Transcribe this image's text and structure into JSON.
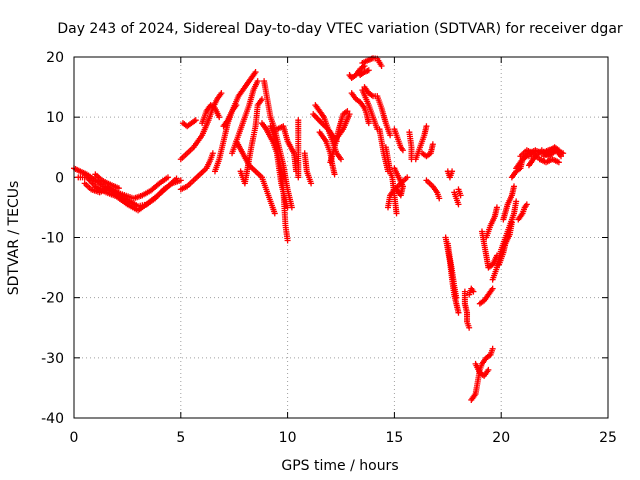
{
  "chart_data": {
    "type": "scatter",
    "title": "Day 243 of 2024, Sidereal Day-to-day VTEC variation (SDTVAR) for receiver dgar",
    "xlabel": "GPS time / hours",
    "ylabel": "SDTVAR / TECUs",
    "xlim": [
      0,
      25
    ],
    "ylim": [
      -40,
      20
    ],
    "xticks": [
      "0",
      "5",
      "10",
      "15",
      "20",
      "25"
    ],
    "yticks": [
      "20",
      "10",
      "0",
      "-10",
      "-20",
      "-30",
      "-40"
    ],
    "grid": true,
    "marker": "plus",
    "color": "#ff0000",
    "segments": [
      [
        [
          0.0,
          1.5
        ],
        [
          0.3,
          1.0
        ],
        [
          0.6,
          0.5
        ],
        [
          1.0,
          -0.5
        ],
        [
          1.4,
          -1.5
        ],
        [
          1.8,
          -2.2
        ],
        [
          2.2,
          -3.0
        ],
        [
          2.6,
          -4.0
        ],
        [
          3.0,
          -4.8
        ],
        [
          3.4,
          -4.5
        ],
        [
          3.8,
          -3.5
        ],
        [
          4.2,
          -2.0
        ],
        [
          4.6,
          -1.0
        ],
        [
          5.0,
          -0.5
        ]
      ],
      [
        [
          0.2,
          0.0
        ],
        [
          0.6,
          0.0
        ],
        [
          1.0,
          -1.5
        ],
        [
          1.5,
          -2.5
        ],
        [
          2.0,
          -3.2
        ],
        [
          2.5,
          -4.5
        ],
        [
          3.0,
          -5.5
        ],
        [
          3.5,
          -4.2
        ],
        [
          4.0,
          -2.8
        ],
        [
          4.5,
          -1.2
        ],
        [
          4.8,
          -0.2
        ]
      ],
      [
        [
          0.5,
          -1.0
        ],
        [
          0.8,
          -2.0
        ],
        [
          1.2,
          -2.5
        ],
        [
          1.6,
          -1.8
        ],
        [
          2.0,
          -2.5
        ],
        [
          2.8,
          -3.5
        ],
        [
          3.2,
          -3.0
        ],
        [
          3.6,
          -2.2
        ],
        [
          4.0,
          -1.0
        ],
        [
          4.4,
          0.0
        ]
      ],
      [
        [
          1.0,
          0.5
        ],
        [
          1.3,
          -0.5
        ],
        [
          1.7,
          -1.2
        ],
        [
          2.1,
          -1.8
        ]
      ],
      [
        [
          5.1,
          9.0
        ],
        [
          5.3,
          8.5
        ],
        [
          5.5,
          9.0
        ],
        [
          5.7,
          9.5
        ]
      ],
      [
        [
          5.0,
          3.0
        ],
        [
          5.3,
          4.0
        ],
        [
          5.6,
          5.0
        ],
        [
          6.0,
          7.0
        ],
        [
          6.3,
          9.5
        ],
        [
          6.5,
          11.5
        ],
        [
          6.7,
          13.0
        ],
        [
          6.9,
          14.0
        ]
      ],
      [
        [
          5.0,
          -2.0
        ],
        [
          5.3,
          -1.5
        ],
        [
          5.6,
          -0.5
        ],
        [
          5.9,
          0.5
        ],
        [
          6.2,
          1.5
        ],
        [
          6.4,
          3.0
        ],
        [
          6.5,
          4.0
        ]
      ],
      [
        [
          6.0,
          9.0
        ],
        [
          6.2,
          11.0
        ],
        [
          6.4,
          12.0
        ],
        [
          6.6,
          11.5
        ],
        [
          6.8,
          10.0
        ]
      ],
      [
        [
          6.6,
          1.0
        ],
        [
          6.8,
          3.0
        ],
        [
          7.0,
          6.0
        ],
        [
          7.2,
          9.0
        ],
        [
          7.4,
          11.0
        ],
        [
          7.6,
          12.0
        ]
      ],
      [
        [
          7.0,
          8.5
        ],
        [
          7.2,
          9.5
        ],
        [
          7.4,
          11.0
        ],
        [
          7.7,
          13.5
        ],
        [
          8.0,
          15.0
        ],
        [
          8.3,
          16.5
        ],
        [
          8.5,
          17.5
        ]
      ],
      [
        [
          7.4,
          4.0
        ],
        [
          7.6,
          6.0
        ],
        [
          7.8,
          8.0
        ],
        [
          8.0,
          10.0
        ],
        [
          8.2,
          12.0
        ],
        [
          8.4,
          14.5
        ],
        [
          8.6,
          16.0
        ]
      ],
      [
        [
          7.8,
          1.0
        ],
        [
          8.0,
          -1.0
        ],
        [
          8.1,
          1.0
        ],
        [
          8.3,
          5.0
        ],
        [
          8.5,
          8.5
        ],
        [
          8.6,
          12.0
        ],
        [
          8.8,
          13.0
        ]
      ],
      [
        [
          7.6,
          6.0
        ],
        [
          7.9,
          4.0
        ],
        [
          8.2,
          2.0
        ],
        [
          8.5,
          1.0
        ],
        [
          8.8,
          0.0
        ],
        [
          9.0,
          -2.0
        ],
        [
          9.2,
          -4.0
        ],
        [
          9.4,
          -6.0
        ]
      ],
      [
        [
          8.9,
          16.0
        ],
        [
          9.0,
          14.0
        ],
        [
          9.1,
          12.0
        ],
        [
          9.2,
          10.0
        ],
        [
          9.4,
          8.0
        ],
        [
          9.6,
          5.0
        ],
        [
          9.8,
          2.0
        ],
        [
          10.0,
          -2.0
        ],
        [
          10.2,
          -5.0
        ]
      ],
      [
        [
          8.8,
          9.0
        ],
        [
          9.0,
          8.0
        ],
        [
          9.3,
          6.0
        ],
        [
          9.5,
          4.0
        ],
        [
          9.7,
          -1.0
        ],
        [
          9.9,
          -4.0
        ],
        [
          10.0,
          -5.0
        ]
      ],
      [
        [
          9.2,
          8.5
        ],
        [
          9.4,
          6.5
        ],
        [
          9.6,
          3.0
        ],
        [
          9.8,
          -2.0
        ],
        [
          9.9,
          -8.0
        ],
        [
          10.0,
          -10.5
        ]
      ],
      [
        [
          9.5,
          8.0
        ],
        [
          9.8,
          8.5
        ],
        [
          10.0,
          6.0
        ],
        [
          10.3,
          4.0
        ],
        [
          10.4,
          1.0
        ]
      ],
      [
        [
          10.5,
          0.0
        ],
        [
          10.5,
          1.0
        ],
        [
          10.5,
          9.5
        ]
      ],
      [
        [
          10.8,
          4.0
        ],
        [
          10.9,
          1.0
        ],
        [
          11.1,
          -1.0
        ]
      ],
      [
        [
          11.3,
          12.0
        ],
        [
          11.5,
          11.0
        ],
        [
          11.7,
          10.0
        ],
        [
          11.9,
          8.0
        ],
        [
          12.1,
          6.0
        ],
        [
          12.3,
          4.0
        ],
        [
          12.5,
          3.0
        ]
      ],
      [
        [
          11.2,
          10.5
        ],
        [
          11.6,
          9.0
        ],
        [
          11.9,
          8.0
        ],
        [
          12.1,
          7.0
        ],
        [
          12.3,
          6.0
        ]
      ],
      [
        [
          11.5,
          7.5
        ],
        [
          11.8,
          6.0
        ],
        [
          12.0,
          4.0
        ],
        [
          12.1,
          2.0
        ],
        [
          12.2,
          0.5
        ]
      ],
      [
        [
          12.0,
          2.5
        ],
        [
          12.2,
          5.0
        ],
        [
          12.4,
          8.0
        ],
        [
          12.6,
          10.5
        ],
        [
          12.8,
          11.0
        ]
      ],
      [
        [
          12.2,
          6.0
        ],
        [
          12.6,
          8.0
        ],
        [
          12.9,
          10.5
        ]
      ],
      [
        [
          13.0,
          14.0
        ],
        [
          13.2,
          13.0
        ],
        [
          13.4,
          12.5
        ],
        [
          13.6,
          11.5
        ],
        [
          13.7,
          10.5
        ],
        [
          13.8,
          9.0
        ]
      ],
      [
        [
          12.9,
          17.0
        ],
        [
          13.0,
          16.5
        ],
        [
          13.2,
          17.0
        ],
        [
          13.4,
          18.0
        ],
        [
          13.6,
          18.5
        ]
      ],
      [
        [
          13.5,
          19.0
        ],
        [
          13.8,
          19.5
        ],
        [
          14.0,
          19.8
        ],
        [
          14.2,
          19.7
        ],
        [
          14.4,
          18.5
        ]
      ],
      [
        [
          13.3,
          17.5
        ],
        [
          13.4,
          17.0
        ],
        [
          13.6,
          17.5
        ],
        [
          13.8,
          17.8
        ]
      ],
      [
        [
          13.6,
          15.0
        ],
        [
          13.8,
          14.0
        ],
        [
          14.0,
          13.5
        ],
        [
          14.2,
          13.5
        ],
        [
          14.4,
          11.5
        ],
        [
          14.6,
          9.0
        ],
        [
          14.8,
          7.0
        ]
      ],
      [
        [
          13.5,
          14.5
        ],
        [
          13.8,
          12.0
        ],
        [
          14.0,
          10.0
        ],
        [
          14.2,
          8.0
        ]
      ],
      [
        [
          14.3,
          8.0
        ],
        [
          14.5,
          4.0
        ],
        [
          14.7,
          1.0
        ]
      ],
      [
        [
          14.6,
          5.0
        ],
        [
          14.7,
          3.0
        ],
        [
          14.8,
          1.0
        ],
        [
          14.9,
          0.0
        ],
        [
          15.0,
          -3.0
        ],
        [
          15.1,
          -6.0
        ]
      ],
      [
        [
          14.7,
          -5.0
        ],
        [
          14.8,
          -3.0
        ],
        [
          15.0,
          -2.0
        ],
        [
          15.3,
          -1.0
        ],
        [
          15.6,
          0.0
        ]
      ],
      [
        [
          15.1,
          -2.0
        ],
        [
          15.3,
          -3.0
        ],
        [
          15.4,
          -1.5
        ],
        [
          15.2,
          0.0
        ],
        [
          15.0,
          1.5
        ]
      ],
      [
        [
          15.0,
          8.0
        ],
        [
          15.2,
          6.0
        ],
        [
          15.3,
          5.0
        ],
        [
          15.4,
          4.5
        ]
      ],
      [
        [
          15.7,
          7.5
        ],
        [
          15.8,
          5.0
        ],
        [
          15.8,
          3.0
        ]
      ],
      [
        [
          16.0,
          3.0
        ],
        [
          16.2,
          5.0
        ],
        [
          16.4,
          7.0
        ],
        [
          16.5,
          8.5
        ]
      ],
      [
        [
          16.3,
          4.0
        ],
        [
          16.5,
          3.5
        ],
        [
          16.7,
          4.0
        ],
        [
          16.8,
          5.5
        ]
      ],
      [
        [
          16.5,
          -0.5
        ],
        [
          16.8,
          -1.5
        ],
        [
          17.0,
          -2.5
        ],
        [
          17.1,
          -3.5
        ]
      ],
      [
        [
          17.5,
          1.0
        ],
        [
          17.6,
          0.0
        ],
        [
          17.7,
          1.0
        ]
      ],
      [
        [
          17.8,
          -2.5
        ],
        [
          17.9,
          -3.5
        ],
        [
          18.0,
          -4.5
        ]
      ],
      [
        [
          18.0,
          -2.0
        ],
        [
          18.1,
          -3.0
        ]
      ],
      [
        [
          17.4,
          -10.0
        ],
        [
          17.5,
          -12.0
        ],
        [
          17.6,
          -14.0
        ],
        [
          17.7,
          -17.0
        ],
        [
          17.8,
          -19.5
        ],
        [
          17.9,
          -21.0
        ],
        [
          18.0,
          -22.5
        ]
      ],
      [
        [
          17.5,
          -11.0
        ],
        [
          17.6,
          -13.5
        ],
        [
          17.7,
          -15.5
        ],
        [
          17.8,
          -18.0
        ],
        [
          17.9,
          -20.0
        ]
      ],
      [
        [
          18.3,
          -19.0
        ],
        [
          18.3,
          -21.0
        ],
        [
          18.4,
          -22.5
        ],
        [
          18.4,
          -24.0
        ],
        [
          18.5,
          -25.0
        ]
      ],
      [
        [
          18.5,
          -19.5
        ],
        [
          18.6,
          -18.5
        ],
        [
          18.7,
          -19.0
        ]
      ],
      [
        [
          18.8,
          -31.0
        ],
        [
          19.0,
          -32.5
        ],
        [
          19.2,
          -33.0
        ],
        [
          19.4,
          -32.0
        ]
      ],
      [
        [
          18.6,
          -37.0
        ],
        [
          18.8,
          -36.0
        ],
        [
          18.9,
          -34.0
        ],
        [
          19.0,
          -32.0
        ],
        [
          19.1,
          -31.0
        ],
        [
          19.3,
          -30.0
        ],
        [
          19.5,
          -29.5
        ],
        [
          19.6,
          -28.5
        ]
      ],
      [
        [
          19.0,
          -21.0
        ],
        [
          19.2,
          -20.5
        ],
        [
          19.4,
          -19.5
        ],
        [
          19.6,
          -18.5
        ]
      ],
      [
        [
          19.1,
          -9.0
        ],
        [
          19.2,
          -11.0
        ],
        [
          19.3,
          -13.0
        ],
        [
          19.4,
          -15.0
        ],
        [
          19.6,
          -14.5
        ],
        [
          19.8,
          -13.0
        ]
      ],
      [
        [
          19.3,
          -10.0
        ],
        [
          19.5,
          -8.0
        ],
        [
          19.7,
          -6.5
        ],
        [
          19.8,
          -5.0
        ]
      ],
      [
        [
          19.6,
          -17.0
        ],
        [
          19.8,
          -15.0
        ],
        [
          20.0,
          -12.0
        ],
        [
          20.2,
          -10.0
        ],
        [
          20.4,
          -8.0
        ],
        [
          20.6,
          -6.0
        ],
        [
          20.7,
          -4.0
        ]
      ],
      [
        [
          19.9,
          -14.5
        ],
        [
          20.1,
          -12.5
        ],
        [
          20.2,
          -11.0
        ],
        [
          20.4,
          -9.5
        ],
        [
          20.5,
          -7.5
        ]
      ],
      [
        [
          20.1,
          -7.0
        ],
        [
          20.3,
          -4.5
        ],
        [
          20.5,
          -3.0
        ],
        [
          20.6,
          -1.5
        ]
      ],
      [
        [
          20.8,
          -7.0
        ],
        [
          21.0,
          -6.0
        ],
        [
          21.1,
          -5.0
        ],
        [
          21.2,
          -4.5
        ]
      ],
      [
        [
          20.5,
          0.0
        ],
        [
          20.7,
          1.0
        ],
        [
          20.9,
          1.5
        ],
        [
          21.0,
          3.0
        ],
        [
          21.2,
          3.5
        ],
        [
          21.4,
          3.5
        ]
      ],
      [
        [
          20.7,
          1.5
        ],
        [
          21.0,
          3.0
        ],
        [
          21.3,
          4.0
        ],
        [
          21.6,
          4.5
        ],
        [
          21.9,
          4.0
        ],
        [
          22.2,
          4.5
        ],
        [
          22.5,
          4.8
        ],
        [
          22.8,
          3.5
        ]
      ],
      [
        [
          20.9,
          3.5
        ],
        [
          21.2,
          4.5
        ],
        [
          21.5,
          4.0
        ],
        [
          21.8,
          3.0
        ],
        [
          22.1,
          2.5
        ],
        [
          22.4,
          3.0
        ],
        [
          22.7,
          2.5
        ]
      ],
      [
        [
          21.3,
          2.0
        ],
        [
          21.6,
          3.5
        ],
        [
          21.9,
          4.5
        ],
        [
          22.2,
          3.5
        ],
        [
          22.6,
          4.5
        ],
        [
          22.9,
          4.0
        ]
      ],
      [
        [
          22.0,
          3.5
        ],
        [
          22.3,
          4.5
        ],
        [
          22.5,
          5.0
        ],
        [
          22.7,
          4.5
        ]
      ]
    ]
  }
}
